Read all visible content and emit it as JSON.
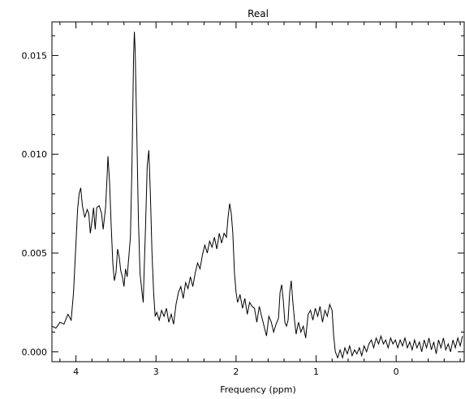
{
  "chart_data": {
    "type": "line",
    "title": "Real",
    "xlabel": "Frequency (ppm)",
    "ylabel": "",
    "x_reversed": true,
    "xlim": [
      4.3,
      -0.85
    ],
    "ylim": [
      -0.0005,
      0.0167
    ],
    "grid": false,
    "legend": "none",
    "line_color": "#000000",
    "xticks": [
      {
        "value": 4,
        "label": "4"
      },
      {
        "value": 3,
        "label": "3"
      },
      {
        "value": 2,
        "label": "2"
      },
      {
        "value": 1,
        "label": "1"
      },
      {
        "value": 0,
        "label": "0"
      }
    ],
    "yticks": [
      {
        "value": 0.0,
        "label": "0.000"
      },
      {
        "value": 0.005,
        "label": "0.005"
      },
      {
        "value": 0.01,
        "label": "0.010"
      },
      {
        "value": 0.015,
        "label": "0.015"
      }
    ],
    "series": [
      {
        "points": [
          [
            4.3,
            0.0013
          ],
          [
            4.25,
            0.0012
          ],
          [
            4.2,
            0.0015
          ],
          [
            4.15,
            0.0014
          ],
          [
            4.1,
            0.0019
          ],
          [
            4.06,
            0.0016
          ],
          [
            4.03,
            0.003
          ],
          [
            4.0,
            0.0055
          ],
          [
            3.98,
            0.0072
          ],
          [
            3.96,
            0.008
          ],
          [
            3.94,
            0.0083
          ],
          [
            3.92,
            0.0074
          ],
          [
            3.89,
            0.0068
          ],
          [
            3.86,
            0.0072
          ],
          [
            3.84,
            0.007
          ],
          [
            3.82,
            0.006
          ],
          [
            3.8,
            0.0066
          ],
          [
            3.78,
            0.0073
          ],
          [
            3.76,
            0.0062
          ],
          [
            3.74,
            0.0073
          ],
          [
            3.71,
            0.0074
          ],
          [
            3.68,
            0.007
          ],
          [
            3.66,
            0.0062
          ],
          [
            3.63,
            0.0073
          ],
          [
            3.61,
            0.009
          ],
          [
            3.6,
            0.0099
          ],
          [
            3.58,
            0.0086
          ],
          [
            3.56,
            0.0064
          ],
          [
            3.54,
            0.0045
          ],
          [
            3.52,
            0.0036
          ],
          [
            3.5,
            0.004
          ],
          [
            3.48,
            0.0052
          ],
          [
            3.46,
            0.0048
          ],
          [
            3.44,
            0.0041
          ],
          [
            3.42,
            0.0038
          ],
          [
            3.4,
            0.0033
          ],
          [
            3.38,
            0.0042
          ],
          [
            3.36,
            0.0038
          ],
          [
            3.34,
            0.0048
          ],
          [
            3.32,
            0.0058
          ],
          [
            3.3,
            0.0094
          ],
          [
            3.28,
            0.015
          ],
          [
            3.27,
            0.0162
          ],
          [
            3.26,
            0.0152
          ],
          [
            3.24,
            0.011
          ],
          [
            3.22,
            0.0068
          ],
          [
            3.2,
            0.004
          ],
          [
            3.18,
            0.0032
          ],
          [
            3.16,
            0.0025
          ],
          [
            3.15,
            0.0038
          ],
          [
            3.13,
            0.0064
          ],
          [
            3.11,
            0.0094
          ],
          [
            3.09,
            0.0102
          ],
          [
            3.07,
            0.008
          ],
          [
            3.05,
            0.005
          ],
          [
            3.03,
            0.003
          ],
          [
            3.01,
            0.0018
          ],
          [
            2.99,
            0.002
          ],
          [
            2.96,
            0.0016
          ],
          [
            2.93,
            0.0021
          ],
          [
            2.9,
            0.0018
          ],
          [
            2.87,
            0.0022
          ],
          [
            2.84,
            0.0015
          ],
          [
            2.81,
            0.0019
          ],
          [
            2.78,
            0.0014
          ],
          [
            2.75,
            0.0024
          ],
          [
            2.72,
            0.003
          ],
          [
            2.69,
            0.0033
          ],
          [
            2.66,
            0.0027
          ],
          [
            2.63,
            0.0035
          ],
          [
            2.6,
            0.0032
          ],
          [
            2.57,
            0.0038
          ],
          [
            2.54,
            0.0033
          ],
          [
            2.51,
            0.004
          ],
          [
            2.48,
            0.0045
          ],
          [
            2.45,
            0.0042
          ],
          [
            2.42,
            0.0049
          ],
          [
            2.39,
            0.0054
          ],
          [
            2.36,
            0.005
          ],
          [
            2.33,
            0.0056
          ],
          [
            2.3,
            0.0053
          ],
          [
            2.27,
            0.0058
          ],
          [
            2.24,
            0.0052
          ],
          [
            2.21,
            0.006
          ],
          [
            2.18,
            0.0055
          ],
          [
            2.15,
            0.006
          ],
          [
            2.12,
            0.0058
          ],
          [
            2.1,
            0.0068
          ],
          [
            2.08,
            0.0075
          ],
          [
            2.06,
            0.007
          ],
          [
            2.04,
            0.006
          ],
          [
            2.02,
            0.004
          ],
          [
            2.0,
            0.003
          ],
          [
            1.98,
            0.0025
          ],
          [
            1.95,
            0.0029
          ],
          [
            1.92,
            0.0022
          ],
          [
            1.89,
            0.0027
          ],
          [
            1.86,
            0.0019
          ],
          [
            1.83,
            0.0025
          ],
          [
            1.8,
            0.0023
          ],
          [
            1.77,
            0.0022
          ],
          [
            1.74,
            0.0015
          ],
          [
            1.71,
            0.0023
          ],
          [
            1.68,
            0.0018
          ],
          [
            1.65,
            0.0013
          ],
          [
            1.62,
            0.0008
          ],
          [
            1.59,
            0.0018
          ],
          [
            1.56,
            0.0015
          ],
          [
            1.53,
            0.001
          ],
          [
            1.5,
            0.0014
          ],
          [
            1.47,
            0.0017
          ],
          [
            1.45,
            0.003
          ],
          [
            1.43,
            0.0034
          ],
          [
            1.41,
            0.0026
          ],
          [
            1.39,
            0.0015
          ],
          [
            1.37,
            0.0013
          ],
          [
            1.35,
            0.0016
          ],
          [
            1.33,
            0.003
          ],
          [
            1.31,
            0.0036
          ],
          [
            1.29,
            0.0025
          ],
          [
            1.27,
            0.0016
          ],
          [
            1.25,
            0.0009
          ],
          [
            1.22,
            0.0015
          ],
          [
            1.19,
            0.001
          ],
          [
            1.16,
            0.0013
          ],
          [
            1.13,
            0.0007
          ],
          [
            1.1,
            0.0019
          ],
          [
            1.07,
            0.0021
          ],
          [
            1.04,
            0.0016
          ],
          [
            1.01,
            0.0022
          ],
          [
            0.98,
            0.0018
          ],
          [
            0.95,
            0.0023
          ],
          [
            0.92,
            0.0015
          ],
          [
            0.89,
            0.0021
          ],
          [
            0.86,
            0.0018
          ],
          [
            0.83,
            0.0024
          ],
          [
            0.8,
            0.0021
          ],
          [
            0.78,
            0.0008
          ],
          [
            0.76,
            0.0
          ],
          [
            0.73,
            -0.0003
          ],
          [
            0.7,
            0.0001
          ],
          [
            0.67,
            -0.0003
          ],
          [
            0.64,
            0.0002
          ],
          [
            0.61,
            -0.0001
          ],
          [
            0.58,
            0.0003
          ],
          [
            0.55,
            -0.0002
          ],
          [
            0.52,
            0.0001
          ],
          [
            0.49,
            -0.0001
          ],
          [
            0.46,
            0.0002
          ],
          [
            0.43,
            -0.0002
          ],
          [
            0.4,
            0.0003
          ],
          [
            0.37,
            0.0
          ],
          [
            0.34,
            0.0004
          ],
          [
            0.31,
            0.0006
          ],
          [
            0.28,
            0.0002
          ],
          [
            0.25,
            0.0007
          ],
          [
            0.22,
            0.0004
          ],
          [
            0.19,
            0.0008
          ],
          [
            0.16,
            0.0004
          ],
          [
            0.13,
            0.0006
          ],
          [
            0.1,
            0.0002
          ],
          [
            0.07,
            0.0007
          ],
          [
            0.04,
            0.0004
          ],
          [
            0.01,
            0.0006
          ],
          [
            -0.02,
            0.0002
          ],
          [
            -0.05,
            0.0006
          ],
          [
            -0.08,
            0.0003
          ],
          [
            -0.11,
            0.0007
          ],
          [
            -0.14,
            0.0002
          ],
          [
            -0.17,
            0.0005
          ],
          [
            -0.2,
            0.0001
          ],
          [
            -0.23,
            0.0006
          ],
          [
            -0.26,
            0.0002
          ],
          [
            -0.29,
            0.0005
          ],
          [
            -0.32,
            0.0
          ],
          [
            -0.35,
            0.0006
          ],
          [
            -0.38,
            0.0002
          ],
          [
            -0.41,
            0.0007
          ],
          [
            -0.44,
            0.0001
          ],
          [
            -0.47,
            0.0005
          ],
          [
            -0.5,
            -0.0001
          ],
          [
            -0.53,
            0.0006
          ],
          [
            -0.56,
            0.0002
          ],
          [
            -0.59,
            0.0007
          ],
          [
            -0.62,
            0.0001
          ],
          [
            -0.65,
            0.0004
          ],
          [
            -0.68,
            0.0
          ],
          [
            -0.71,
            0.0006
          ],
          [
            -0.74,
            0.0002
          ],
          [
            -0.77,
            0.0007
          ],
          [
            -0.8,
            0.0003
          ],
          [
            -0.83,
            0.0008
          ]
        ]
      }
    ]
  }
}
